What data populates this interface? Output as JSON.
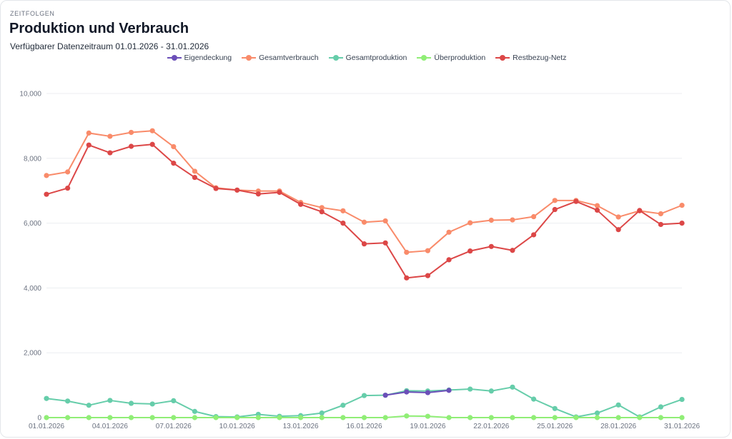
{
  "header": {
    "kicker": "ZEITFOLGEN",
    "title": "Produktion und Verbrauch",
    "subtitle": "Verfügbarer Datenzeitraum 01.01.2026 - 31.01.2026"
  },
  "chart_data": {
    "type": "line",
    "title": "Produktion und Verbrauch",
    "xlabel": "",
    "ylabel": "",
    "ylim": [
      0,
      10000
    ],
    "yticks": [
      0,
      2000,
      4000,
      6000,
      8000,
      10000
    ],
    "ytick_labels": [
      "0",
      "2,000",
      "4,000",
      "6,000",
      "8,000",
      "10,000"
    ],
    "legend_position": "top-center",
    "grid": true,
    "categories": [
      "01.01.2026",
      "02.01.2026",
      "03.01.2026",
      "04.01.2026",
      "05.01.2026",
      "06.01.2026",
      "07.01.2026",
      "08.01.2026",
      "09.01.2026",
      "10.01.2026",
      "11.01.2026",
      "12.01.2026",
      "13.01.2026",
      "14.01.2026",
      "15.01.2026",
      "16.01.2026",
      "17.01.2026",
      "18.01.2026",
      "19.01.2026",
      "20.01.2026",
      "21.01.2026",
      "22.01.2026",
      "23.01.2026",
      "24.01.2026",
      "25.01.2026",
      "26.01.2026",
      "27.01.2026",
      "28.01.2026",
      "29.01.2026",
      "30.01.2026",
      "31.01.2026"
    ],
    "xtick_labels": [
      "01.01.2026",
      "04.01.2026",
      "07.01.2026",
      "10.01.2026",
      "13.01.2026",
      "16.01.2026",
      "19.01.2026",
      "22.01.2026",
      "25.01.2026",
      "28.01.2026",
      "31.01.2026"
    ],
    "series": [
      {
        "name": "Gesamtverbrauch",
        "color": "#f98b6a",
        "values": [
          7470,
          7580,
          8780,
          8680,
          8800,
          8850,
          8360,
          7600,
          7090,
          7020,
          6990,
          6990,
          6640,
          6480,
          6380,
          6030,
          6070,
          5100,
          5150,
          5720,
          6010,
          6090,
          6100,
          6200,
          6700,
          6700,
          6540,
          6190,
          6380,
          6290,
          6550
        ]
      },
      {
        "name": "Restbezug-Netz",
        "color": "#dc4747",
        "values": [
          6890,
          7080,
          8410,
          8170,
          8370,
          8430,
          7850,
          7410,
          7070,
          7020,
          6900,
          6950,
          6580,
          6350,
          6000,
          5360,
          5390,
          4310,
          4380,
          4870,
          5140,
          5280,
          5160,
          5640,
          6420,
          6670,
          6400,
          5800,
          6390,
          5960,
          6000
        ]
      },
      {
        "name": "Gesamtproduktion",
        "color": "#66cdaa",
        "values": [
          590,
          510,
          380,
          530,
          440,
          420,
          520,
          190,
          30,
          20,
          100,
          40,
          60,
          140,
          380,
          680,
          690,
          830,
          820,
          850,
          880,
          820,
          940,
          570,
          280,
          20,
          140,
          390,
          20,
          330,
          560
        ]
      },
      {
        "name": "Eigendeckung",
        "color": "#6b4fb8",
        "values": [
          null,
          null,
          null,
          null,
          null,
          null,
          null,
          null,
          null,
          null,
          null,
          null,
          null,
          null,
          null,
          null,
          690,
          790,
          770,
          840,
          null,
          null,
          null,
          null,
          null,
          null,
          null,
          null,
          null,
          null,
          null
        ]
      },
      {
        "name": "Überproduktion",
        "color": "#90ee76",
        "values": [
          0,
          0,
          0,
          0,
          0,
          0,
          0,
          0,
          0,
          0,
          0,
          0,
          0,
          0,
          0,
          0,
          0,
          50,
          40,
          0,
          0,
          0,
          0,
          0,
          0,
          0,
          0,
          0,
          0,
          0,
          0
        ]
      }
    ]
  },
  "legend": [
    {
      "name": "Eigendeckung",
      "color": "#6b4fb8"
    },
    {
      "name": "Gesamtverbrauch",
      "color": "#f98b6a"
    },
    {
      "name": "Gesamtproduktion",
      "color": "#66cdaa"
    },
    {
      "name": "Überproduktion",
      "color": "#90ee76"
    },
    {
      "name": "Restbezug-Netz",
      "color": "#dc4747"
    }
  ]
}
